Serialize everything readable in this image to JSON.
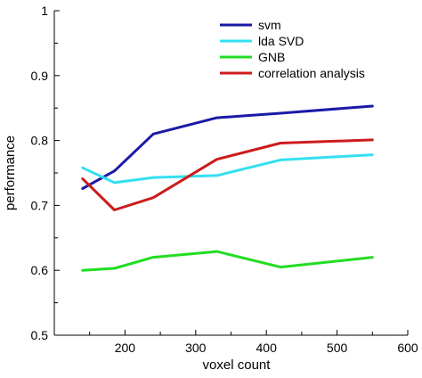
{
  "chart_data": {
    "type": "line",
    "xlabel": "voxel count",
    "ylabel": "performance",
    "xlim": [
      100,
      600
    ],
    "ylim": [
      0.5,
      1.0
    ],
    "xticks": [
      200,
      300,
      400,
      500,
      600
    ],
    "yticks": [
      0.5,
      0.6,
      0.7,
      0.8,
      0.9,
      1.0
    ],
    "xtick_labels": [
      "200",
      "300",
      "400",
      "500",
      "600"
    ],
    "ytick_labels": [
      "0.5",
      "0.6",
      "0.7",
      "0.8",
      "0.9",
      "1"
    ],
    "grid": false,
    "legend_position": "top-right",
    "series": [
      {
        "name": "svm",
        "color": "#1a1aa8",
        "x": [
          140,
          185,
          240,
          330,
          420,
          550
        ],
        "y": [
          0.726,
          0.753,
          0.81,
          0.835,
          0.842,
          0.853
        ]
      },
      {
        "name": "lda SVD",
        "color": "#33e0f0",
        "x": [
          140,
          185,
          240,
          330,
          420,
          550
        ],
        "y": [
          0.758,
          0.735,
          0.743,
          0.746,
          0.77,
          0.778
        ]
      },
      {
        "name": "GNB",
        "color": "#22dd22",
        "x": [
          140,
          185,
          240,
          330,
          420,
          550
        ],
        "y": [
          0.6,
          0.603,
          0.62,
          0.629,
          0.605,
          0.62
        ]
      },
      {
        "name": "correlation analysis",
        "color": "#cc1c1c",
        "x": [
          140,
          185,
          240,
          330,
          420,
          550
        ],
        "y": [
          0.741,
          0.693,
          0.712,
          0.771,
          0.796,
          0.801
        ]
      }
    ]
  }
}
